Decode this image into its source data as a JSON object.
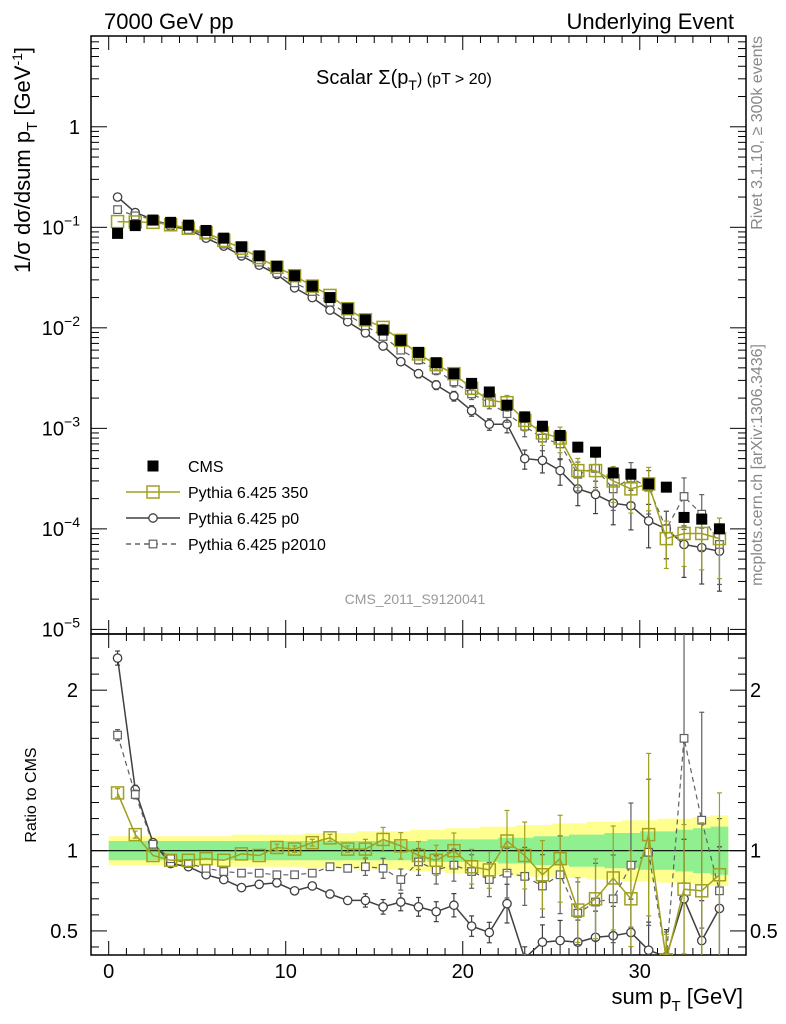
{
  "header": {
    "left": "7000 GeV pp",
    "right": "Underlying Event"
  },
  "side_labels": {
    "rivet": "Rivet 3.1.10, ≥ 300k events",
    "mcplots": "mcplots.cern.ch [arXiv:1306.3436]"
  },
  "plot_title": {
    "main": "Scalar Σ(p",
    "sub": "T",
    "tail": ") (pT > 20)"
  },
  "watermark": "CMS_2011_S9120041",
  "axis": {
    "xlabel": "sum p",
    "xlabel_sub": "T",
    "xlabel_unit": " [GeV]",
    "ylabel_top": "1/σ dσ/dsum p",
    "ylabel_top_sub": "T",
    "ylabel_top_unit": " [GeV",
    "ylabel_top_sup": "-1",
    "ylabel_top_close": "]",
    "ylabel_bottom": "Ratio to CMS"
  },
  "colors": {
    "cms": "#000000",
    "py350": "#a0a020",
    "p0": "#404040",
    "p2010": "#606060",
    "band_inner": "#90f090",
    "band_outer": "#ffff90"
  },
  "chart_data": [
    {
      "type": "scatter",
      "log_y": true,
      "xlim": [
        -1,
        36
      ],
      "ylim": [
        9e-06,
        8
      ],
      "x_ticks": [
        0,
        10,
        20,
        30
      ],
      "y_ticks": [
        {
          "value": 1e-05,
          "label": "10",
          "exp": "−5"
        },
        {
          "value": 0.0001,
          "label": "10",
          "exp": "−4"
        },
        {
          "value": 0.001,
          "label": "10",
          "exp": "−3"
        },
        {
          "value": 0.01,
          "label": "10",
          "exp": "−2"
        },
        {
          "value": 0.1,
          "label": "10",
          "exp": "−1"
        },
        {
          "value": 1,
          "label": "1",
          "exp": ""
        }
      ],
      "x": [
        0.5,
        1.5,
        2.5,
        3.5,
        4.5,
        5.5,
        6.5,
        7.5,
        8.5,
        9.5,
        10.5,
        11.5,
        12.5,
        13.5,
        14.5,
        15.5,
        16.5,
        17.5,
        18.5,
        19.5,
        20.5,
        21.5,
        22.5,
        23.5,
        24.5,
        25.5,
        26.5,
        27.5,
        28.5,
        29.5,
        30.5,
        31.5,
        32.5,
        33.5,
        34.5
      ],
      "legend": [
        "CMS",
        "Pythia 6.425 350",
        "Pythia 6.425 p0",
        "Pythia 6.425 p2010"
      ],
      "series": [
        {
          "name": "CMS",
          "values": [
            0.087,
            0.104,
            0.118,
            0.112,
            0.105,
            0.093,
            0.078,
            0.064,
            0.052,
            0.041,
            0.033,
            0.026,
            0.02,
            0.0155,
            0.012,
            0.0095,
            0.0075,
            0.0057,
            0.0045,
            0.0035,
            0.0028,
            0.0023,
            0.0017,
            0.0013,
            0.00105,
            0.00085,
            0.00065,
            0.00058,
            0.00036,
            0.00035,
            0.00028,
            0.00026,
            0.00013,
            0.000125,
            0.0001
          ]
        },
        {
          "name": "Pythia 6.425 350",
          "values": [
            0.114,
            0.113,
            0.112,
            0.106,
            0.098,
            0.088,
            0.074,
            0.062,
            0.05,
            0.04,
            0.033,
            0.026,
            0.021,
            0.0155,
            0.012,
            0.0101,
            0.0075,
            0.0055,
            0.0043,
            0.0035,
            0.0025,
            0.0019,
            0.0018,
            0.0012,
            0.0009,
            0.0008,
            0.00038,
            0.00038,
            0.0003,
            0.00025,
            0.00028,
            8e-05,
            9e-05,
            9e-05,
            8e-05
          ]
        },
        {
          "name": "Pythia 6.425 p0",
          "values": [
            0.2,
            0.14,
            0.12,
            0.102,
            0.095,
            0.078,
            0.065,
            0.052,
            0.042,
            0.034,
            0.025,
            0.02,
            0.015,
            0.0115,
            0.0089,
            0.0066,
            0.0046,
            0.0035,
            0.0027,
            0.0021,
            0.0015,
            0.0011,
            0.0011,
            0.0005,
            0.00048,
            0.00038,
            0.00025,
            0.00022,
            0.00018,
            0.00017,
            0.00012,
            0.0001,
            7e-05,
            6.5e-05,
            6e-05
          ]
        },
        {
          "name": "Pythia 6.425 p2010",
          "values": [
            0.15,
            0.13,
            0.12,
            0.105,
            0.095,
            0.085,
            0.068,
            0.055,
            0.045,
            0.035,
            0.028,
            0.023,
            0.018,
            0.0135,
            0.0105,
            0.0082,
            0.006,
            0.0048,
            0.0038,
            0.0029,
            0.0022,
            0.0018,
            0.0014,
            0.00105,
            0.0008,
            0.0007,
            0.00035,
            0.0004,
            0.00025,
            0.00032,
            0.00026,
            0.0001,
            0.00021,
            0.00014,
            7e-05
          ]
        }
      ]
    },
    {
      "type": "line",
      "xlim": [
        -1,
        36
      ],
      "ylim": [
        0.35,
        2.35
      ],
      "x_ticks": [
        0,
        10,
        20,
        30
      ],
      "y_ticks": [
        {
          "value": 0.5,
          "label": "0.5"
        },
        {
          "value": 1,
          "label": "1"
        },
        {
          "value": 2,
          "label": "2"
        }
      ],
      "ylabel": "Ratio to CMS",
      "band_inner_halfwidth": [
        0.06,
        0.06,
        0.06,
        0.06,
        0.06,
        0.06,
        0.06,
        0.06,
        0.06,
        0.06,
        0.06,
        0.06,
        0.06,
        0.06,
        0.06,
        0.06,
        0.06,
        0.06,
        0.07,
        0.07,
        0.07,
        0.07,
        0.08,
        0.08,
        0.09,
        0.09,
        0.1,
        0.1,
        0.11,
        0.11,
        0.12,
        0.12,
        0.13,
        0.14,
        0.15
      ],
      "band_outer_halfwidth": [
        0.09,
        0.09,
        0.09,
        0.09,
        0.09,
        0.09,
        0.09,
        0.1,
        0.1,
        0.1,
        0.1,
        0.11,
        0.11,
        0.11,
        0.12,
        0.12,
        0.12,
        0.13,
        0.13,
        0.14,
        0.14,
        0.15,
        0.15,
        0.16,
        0.16,
        0.17,
        0.17,
        0.18,
        0.18,
        0.19,
        0.19,
        0.2,
        0.2,
        0.21,
        0.22
      ],
      "series": [
        {
          "name": "Pythia 6.425 350",
          "values": [
            1.36,
            1.1,
            0.97,
            0.94,
            0.94,
            0.95,
            0.94,
            0.98,
            0.97,
            1.02,
            1.01,
            1.05,
            1.08,
            1.01,
            1.01,
            1.07,
            1.03,
            0.97,
            0.94,
            1.0,
            0.9,
            0.88,
            1.06,
            0.97,
            0.85,
            0.95,
            0.63,
            0.7,
            0.83,
            0.7,
            1.1,
            0.32,
            0.76,
            0.75,
            0.85
          ]
        },
        {
          "name": "Pythia 6.425 p0",
          "values": [
            2.2,
            1.38,
            1.05,
            0.92,
            0.9,
            0.85,
            0.82,
            0.77,
            0.79,
            0.8,
            0.75,
            0.78,
            0.73,
            0.69,
            0.69,
            0.65,
            0.68,
            0.65,
            0.62,
            0.66,
            0.53,
            0.49,
            0.67,
            0.33,
            0.43,
            0.44,
            0.43,
            0.46,
            0.47,
            0.49,
            0.38,
            0.34,
            0.7,
            0.44,
            0.64
          ]
        },
        {
          "name": "Pythia 6.425 p2010",
          "values": [
            1.72,
            1.35,
            1.04,
            0.95,
            0.92,
            0.89,
            0.87,
            0.86,
            0.86,
            0.85,
            0.85,
            0.86,
            0.9,
            0.89,
            0.9,
            0.89,
            0.82,
            0.93,
            0.88,
            0.91,
            0.87,
            0.82,
            0.86,
            0.84,
            0.78,
            0.85,
            0.61,
            0.68,
            0.7,
            0.91,
            0.99,
            0.33,
            1.7,
            1.19,
            0.75
          ]
        }
      ]
    }
  ]
}
